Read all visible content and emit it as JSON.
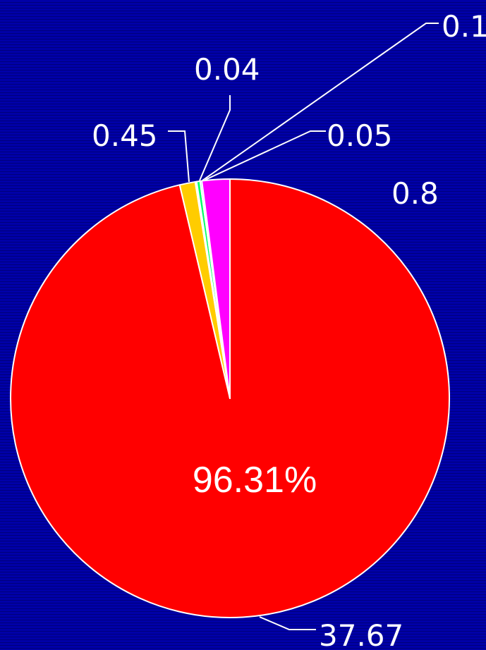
{
  "chart_data": {
    "type": "pie",
    "slices": [
      {
        "value": 37.67,
        "label": "37.67",
        "color": "#ff0000"
      },
      {
        "value": 0.45,
        "label": "0.45",
        "color": "#ffcc00"
      },
      {
        "value": 0.04,
        "label": "0.04",
        "color": "#ffffcc"
      },
      {
        "value": 0.1,
        "label": "0.1",
        "color": "#00ff66"
      },
      {
        "value": 0.05,
        "label": "0.05",
        "color": "#99ccff"
      },
      {
        "value": 0.8,
        "label": "0.8",
        "color": "#ff00ff"
      }
    ],
    "center_label": "96.31%"
  }
}
